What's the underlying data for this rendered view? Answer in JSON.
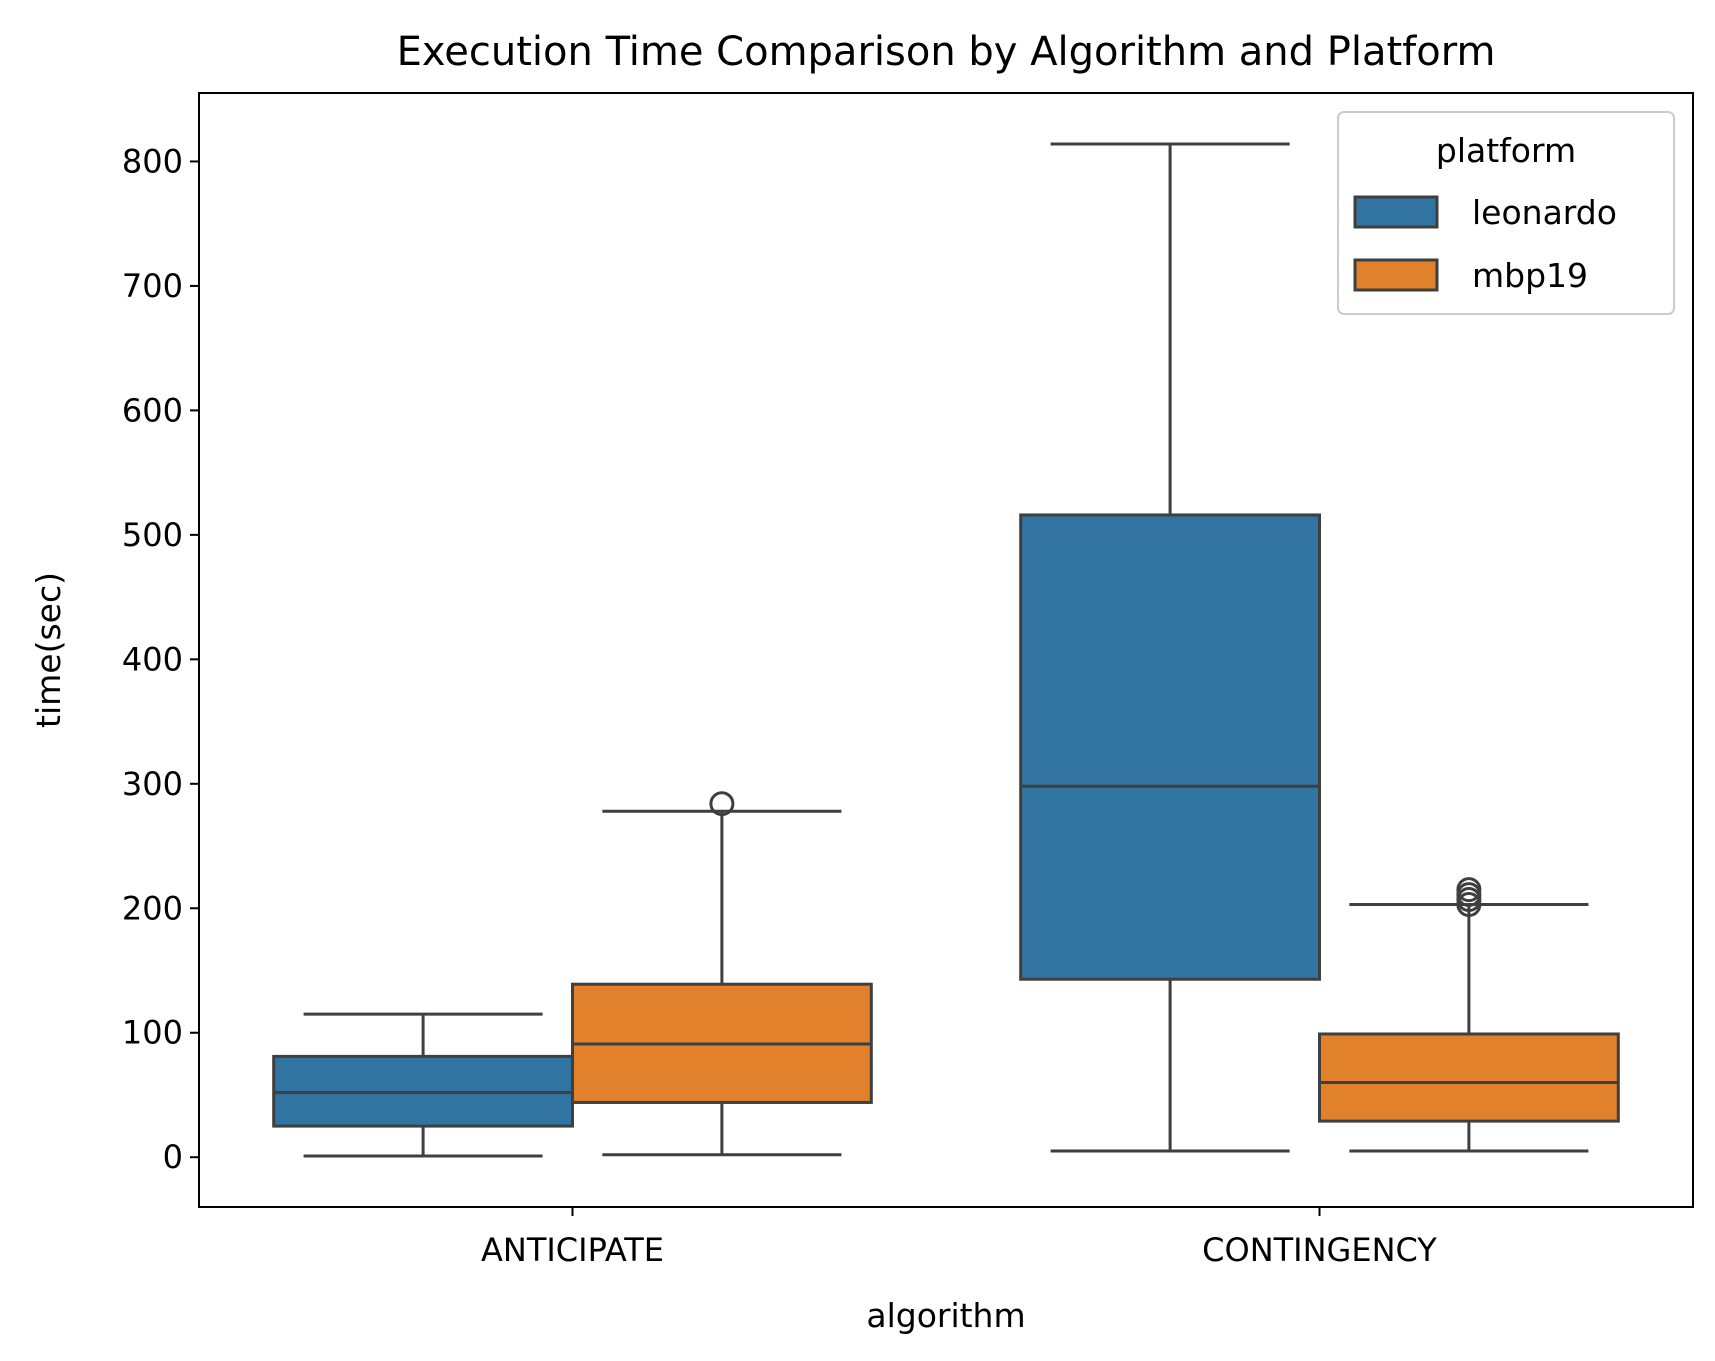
{
  "chart_data": {
    "type": "box",
    "title": "Execution Time Comparison by Algorithm and Platform",
    "xlabel": "algorithm",
    "ylabel": "time(sec)",
    "categories": [
      "ANTICIPATE",
      "CONTINGENCY"
    ],
    "ylim": [
      -40,
      855
    ],
    "yticks": [
      0,
      100,
      200,
      300,
      400,
      500,
      600,
      700,
      800
    ],
    "grid": false,
    "legend": {
      "title": "platform",
      "placement": "top-right"
    },
    "series": [
      {
        "name": "leonardo",
        "color": "#3274a1",
        "boxes": [
          {
            "category": "ANTICIPATE",
            "whisker_low": 1,
            "q1": 25,
            "median": 52,
            "q3": 81,
            "whisker_high": 115,
            "outliers": []
          },
          {
            "category": "CONTINGENCY",
            "whisker_low": 5,
            "q1": 143,
            "median": 298,
            "q3": 516,
            "whisker_high": 814,
            "outliers": []
          }
        ]
      },
      {
        "name": "mbp19",
        "color": "#e1812c",
        "boxes": [
          {
            "category": "ANTICIPATE",
            "whisker_low": 2,
            "q1": 44,
            "median": 91,
            "q3": 139,
            "whisker_high": 278,
            "outliers": [
              284
            ]
          },
          {
            "category": "CONTINGENCY",
            "whisker_low": 5,
            "q1": 29,
            "median": 60,
            "q3": 99,
            "whisker_high": 203,
            "outliers": [
              203,
              207,
              211,
              215
            ]
          }
        ]
      }
    ],
    "edge_color": "#3f3f3f"
  }
}
